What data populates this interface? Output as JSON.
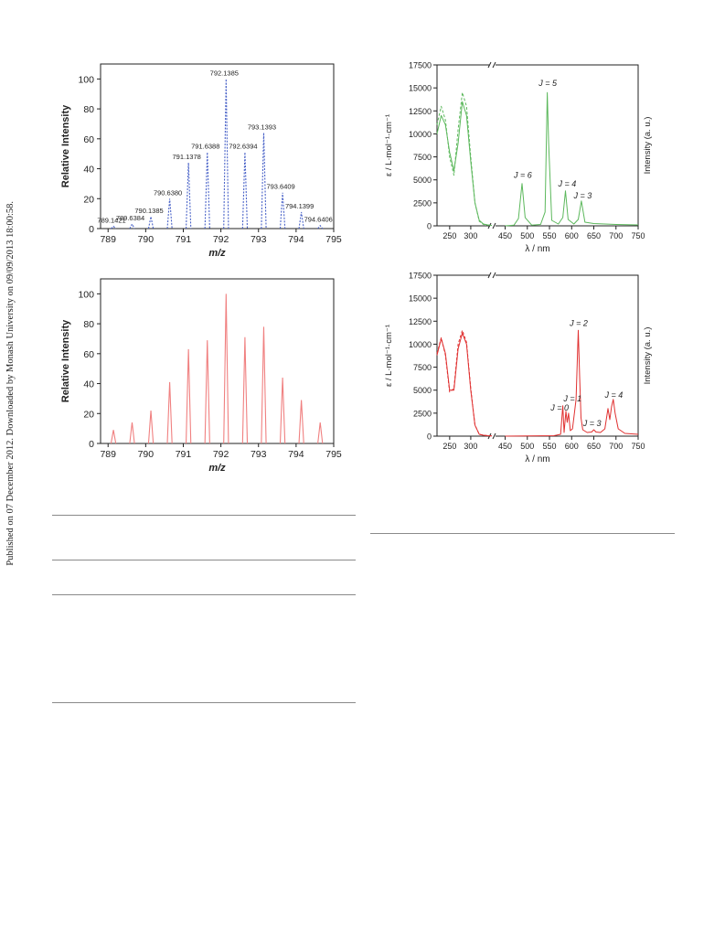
{
  "side_note": "Published on 07 December 2012. Downloaded by Monash University on 09/09/2013 18:00:58.",
  "chart_data": [
    {
      "type": "bar",
      "color": "#4a63c8",
      "style": "dashed-peaks",
      "xlabel": "m/z",
      "ylabel": "Relative Intensity",
      "xlim": [
        788.8,
        795
      ],
      "ylim": [
        0,
        110
      ],
      "xticks": [
        789,
        790,
        791,
        792,
        793,
        794,
        795
      ],
      "yticks": [
        0,
        20,
        40,
        60,
        80,
        100
      ],
      "x": [
        789.1421,
        789.6384,
        790.1385,
        790.638,
        791.1378,
        791.6388,
        792.1385,
        792.6394,
        793.1393,
        793.6409,
        794.1399,
        794.6406
      ],
      "values": [
        1.5,
        3,
        8,
        20,
        44,
        51,
        100,
        51,
        64,
        24,
        11,
        2
      ],
      "labels": [
        "789.1421",
        "789.6384",
        "790.1385",
        "790.6380",
        "791.1378",
        "791.6388",
        "792.1385",
        "792.6394",
        "793.1393",
        "793.6409",
        "794.1399",
        "794.6406"
      ]
    },
    {
      "type": "line",
      "color": "#5cb85c",
      "xlabel": "λ / nm",
      "ylabel_left": "ε / L·mol⁻¹·cm⁻¹",
      "ylabel_right": "Intensity (a. u.)",
      "ylim": [
        0,
        17500
      ],
      "xticks": [
        "250",
        "300",
        "450",
        "500",
        "550",
        "600",
        "650",
        "700",
        "750"
      ],
      "yticks": [
        "0",
        "2500",
        "5000",
        "7500",
        "10000",
        "12500",
        "15000",
        "17500"
      ],
      "axis_break": "//",
      "series": [
        {
          "x": [
            220,
            230,
            240,
            250,
            260,
            270,
            280,
            290,
            300,
            310,
            320,
            330,
            340,
            350
          ],
          "y": [
            10000,
            12000,
            11000,
            8000,
            6000,
            9000,
            13500,
            12000,
            7000,
            2500,
            600,
            200,
            100,
            50
          ]
        },
        {
          "x": [
            220,
            230,
            240,
            250,
            260,
            270,
            280,
            290,
            300,
            310,
            320,
            330,
            340,
            350
          ],
          "y": [
            11000,
            13000,
            11500,
            7500,
            5500,
            10500,
            14500,
            13000,
            7500,
            2500,
            500,
            150,
            80,
            50
          ]
        },
        {
          "x": [
            450,
            470,
            480,
            488,
            495,
            510,
            530,
            540,
            545,
            548,
            555,
            570,
            580,
            586,
            592,
            605,
            615,
            622,
            630,
            650,
            700,
            750
          ],
          "y": [
            0,
            80,
            800,
            4600,
            900,
            80,
            150,
            1500,
            14500,
            9000,
            600,
            200,
            900,
            3800,
            700,
            200,
            700,
            2700,
            400,
            250,
            150,
            100
          ]
        }
      ],
      "annotations": [
        {
          "label": "J = 6",
          "x": 490,
          "y": 5200
        },
        {
          "label": "J = 5",
          "x": 546,
          "y": 15200
        },
        {
          "label": "J = 4",
          "x": 590,
          "y": 4300
        },
        {
          "label": "J = 3",
          "x": 625,
          "y": 3000
        }
      ]
    },
    {
      "type": "bar",
      "color": "#f08080",
      "style": "solid-peaks",
      "xlabel": "m/z",
      "ylabel": "Relative Intensity",
      "xlim": [
        788.8,
        795
      ],
      "ylim": [
        0,
        110
      ],
      "xticks": [
        789,
        790,
        791,
        792,
        793,
        794,
        795
      ],
      "yticks": [
        0,
        20,
        40,
        60,
        80,
        100
      ],
      "x": [
        789.1421,
        789.6384,
        790.1385,
        790.638,
        791.1378,
        791.6388,
        792.1385,
        792.6394,
        793.1393,
        793.6409,
        794.1399,
        794.6406
      ],
      "values": [
        9,
        14,
        22,
        41,
        63,
        69,
        100,
        71,
        78,
        44,
        29,
        14
      ]
    },
    {
      "type": "line",
      "color": "#e03030",
      "xlabel": "λ / nm",
      "ylabel_left": "ε / L·mol⁻¹·cm⁻¹",
      "ylabel_right": "Intensity (a. u.)",
      "ylim": [
        0,
        17500
      ],
      "xticks": [
        "250",
        "300",
        "450",
        "500",
        "550",
        "600",
        "650",
        "700",
        "750"
      ],
      "yticks": [
        "0",
        "2500",
        "5000",
        "7500",
        "10000",
        "12500",
        "15000",
        "17500"
      ],
      "axis_break": "//",
      "series": [
        {
          "x": [
            220,
            230,
            240,
            250,
            260,
            270,
            280,
            290,
            300,
            310,
            320,
            330,
            340,
            350
          ],
          "y": [
            8800,
            10600,
            9000,
            5000,
            5000,
            9500,
            11200,
            10000,
            5000,
            1200,
            200,
            100,
            50,
            30
          ]
        },
        {
          "x": [
            220,
            230,
            240,
            250,
            260,
            270,
            280,
            290,
            300,
            310,
            320,
            330,
            340,
            350
          ],
          "y": [
            9000,
            10700,
            8800,
            4800,
            5200,
            10000,
            11500,
            10200,
            5200,
            1200,
            200,
            100,
            50,
            30
          ]
        },
        {
          "x": [
            450,
            560,
            575,
            580,
            583,
            587,
            590,
            593,
            597,
            602,
            610,
            615,
            618,
            621,
            625,
            635,
            645,
            650,
            655,
            665,
            675,
            682,
            686,
            690,
            694,
            698,
            705,
            720,
            750
          ],
          "y": [
            0,
            50,
            200,
            3300,
            400,
            2700,
            1500,
            2500,
            600,
            800,
            4000,
            11500,
            6500,
            2000,
            700,
            400,
            450,
            700,
            450,
            400,
            800,
            3000,
            1800,
            3200,
            4000,
            2500,
            800,
            300,
            200
          ]
        }
      ],
      "annotations": [
        {
          "label": "J = 0",
          "x": 573,
          "y": 2800
        },
        {
          "label": "J = 1",
          "x": 602,
          "y": 3800
        },
        {
          "label": "J = 2",
          "x": 616,
          "y": 12000
        },
        {
          "label": "J = 3",
          "x": 646,
          "y": 1100
        },
        {
          "label": "J = 4",
          "x": 695,
          "y": 4200
        }
      ]
    }
  ]
}
